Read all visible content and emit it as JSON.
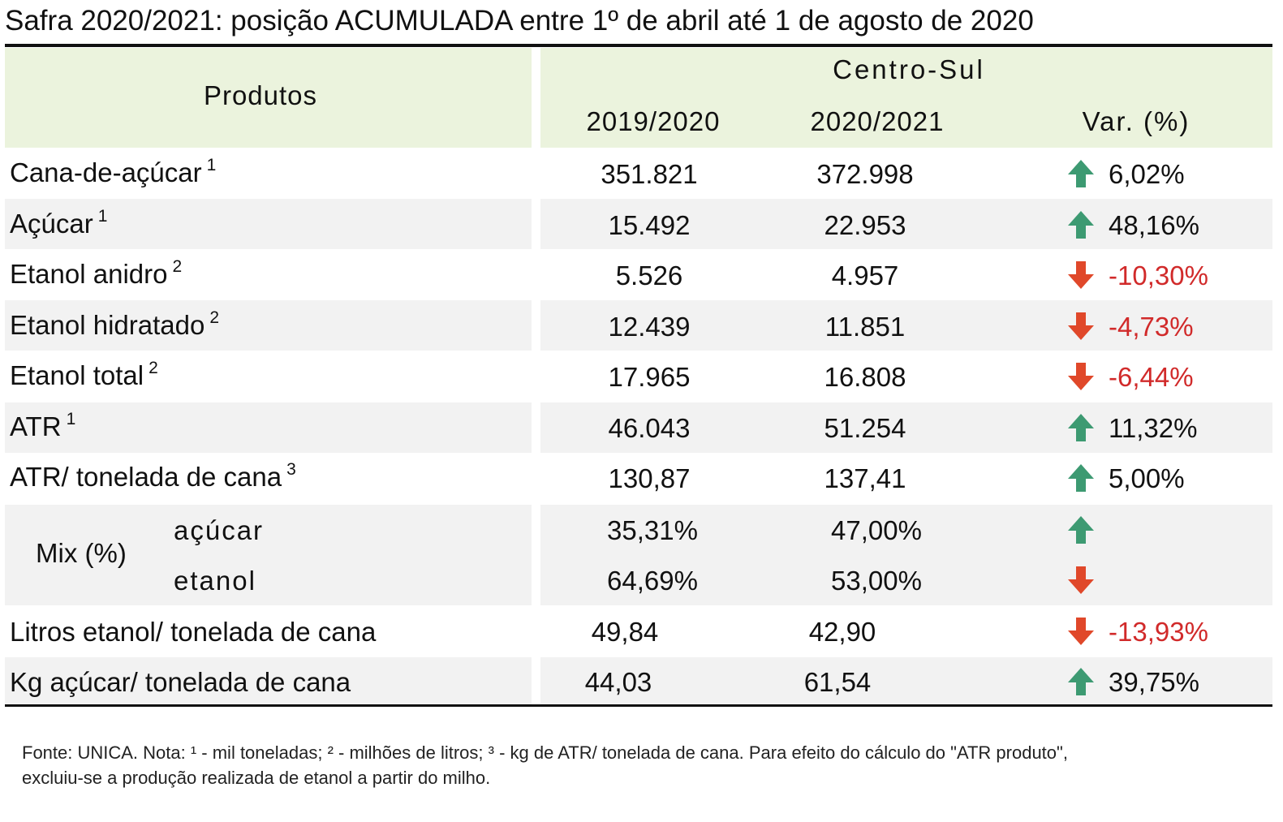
{
  "title": "Safra 2020/2021: posição ACUMULADA entre 1º de abril até 1 de agosto de 2020",
  "header": {
    "produtos": "Produtos",
    "region": "Centro-Sul",
    "col1": "2019/2020",
    "col2": "2020/2021",
    "col3": "Var. (%)"
  },
  "rows": [
    {
      "label": "Cana-de-açúcar",
      "sup": "1",
      "v1": "351.821",
      "v2": "372.998",
      "var": "6,02%",
      "dir": "up"
    },
    {
      "label": "Açúcar",
      "sup": "1",
      "v1": "15.492",
      "v2": "22.953",
      "var": "48,16%",
      "dir": "up"
    },
    {
      "label": "Etanol anidro",
      "sup": "2",
      "v1": "5.526",
      "v2": "4.957",
      "var": "-10,30%",
      "dir": "down"
    },
    {
      "label": "Etanol hidratado",
      "sup": "2",
      "v1": "12.439",
      "v2": "11.851",
      "var": "-4,73%",
      "dir": "down"
    },
    {
      "label": "Etanol total",
      "sup": "2",
      "v1": "17.965",
      "v2": "16.808",
      "var": "-6,44%",
      "dir": "down"
    },
    {
      "label": "ATR",
      "sup": "1",
      "v1": "46.043",
      "v2": "51.254",
      "var": "11,32%",
      "dir": "up"
    },
    {
      "label": "ATR/ tonelada de cana",
      "sup": "3",
      "v1": "130,87",
      "v2": "137,41",
      "var": "5,00%",
      "dir": "up"
    }
  ],
  "mix": {
    "label": "Mix (%)",
    "acucar": {
      "label": "açúcar",
      "v1": "35,31%",
      "v2": "47,00%",
      "dir": "up"
    },
    "etanol": {
      "label": "etanol",
      "v1": "64,69%",
      "v2": "53,00%",
      "dir": "down"
    }
  },
  "litros": {
    "label": "Litros etanol/ tonelada de cana",
    "v1": "49,84",
    "v2": "42,90",
    "var": "-13,93%",
    "dir": "down"
  },
  "kg": {
    "label": "Kg açúcar/ tonelada de cana",
    "v1": "44,03",
    "v2": "61,54",
    "var": "39,75%",
    "dir": "up"
  },
  "colors": {
    "up": "#3d9a72",
    "down": "#e0482a",
    "negative": "#d12a2a",
    "header_bg": "#ebf3dd",
    "row_bg": "#f2f2f2"
  },
  "footer": {
    "line1": "Fonte: UNICA. Nota: ¹ - mil toneladas; ² - milhões de litros; ³ - kg de ATR/ tonelada de cana. Para efeito do cálculo do \"ATR produto\",",
    "line2": "excluiu-se a produção realizada de etanol a partir do milho."
  }
}
